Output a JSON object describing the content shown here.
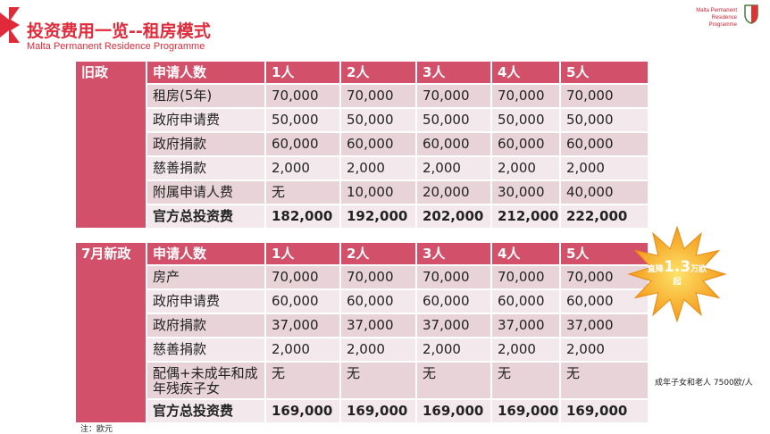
{
  "header": {
    "title": "投资费用一览--租房模式",
    "subtitle": "Malta Permanent Residence Programme",
    "brand_line1": "Malta Permanent",
    "brand_line2": "Residence Programme"
  },
  "tables": [
    {
      "label": "旧政",
      "header": [
        "申请人数",
        "1人",
        "2人",
        "3人",
        "4人",
        "5人"
      ],
      "rows": [
        [
          "租房(5年)",
          "70,000",
          "70,000",
          "70,000",
          "70,000",
          "70,000"
        ],
        [
          "政府申请费",
          "50,000",
          "50,000",
          "50,000",
          "50,000",
          "50,000"
        ],
        [
          "政府捐款",
          "60,000",
          "60,000",
          "60,000",
          "60,000",
          "60,000"
        ],
        [
          "慈善捐款",
          "2,000",
          "2,000",
          "2,000",
          "2,000",
          "2,000"
        ],
        [
          "附属申请人费",
          "无",
          "10,000",
          "20,000",
          "30,000",
          "40,000"
        ],
        [
          "官方总投资费",
          "182,000",
          "192,000",
          "202,000",
          "212,000",
          "222,000"
        ]
      ]
    },
    {
      "label": "7月新政",
      "header": [
        "申请人数",
        "1人",
        "2人",
        "3人",
        "4人",
        "5人"
      ],
      "rows": [
        [
          "房产",
          "70,000",
          "70,000",
          "70,000",
          "70,000",
          "70,000"
        ],
        [
          "政府申请费",
          "60,000",
          "60,000",
          "60,000",
          "60,000",
          "60,000"
        ],
        [
          "政府捐款",
          "37,000",
          "37,000",
          "37,000",
          "37,000",
          "37,000"
        ],
        [
          "慈善捐款",
          "2,000",
          "2,000",
          "2,000",
          "2,000",
          "2,000"
        ],
        [
          "配偶+未成年和成年残疾子女",
          "无",
          "无",
          "无",
          "无",
          "无"
        ],
        [
          "官方总投资费",
          "169,000",
          "169,000",
          "169,000",
          "169,000",
          "169,000"
        ]
      ]
    }
  ],
  "badge": {
    "prefix": "直降",
    "number": "1.3",
    "unit": "万欧",
    "suffix": "起"
  },
  "side_note": "成年子女和老人 7500欧/人",
  "footnote": "注：欧元"
}
